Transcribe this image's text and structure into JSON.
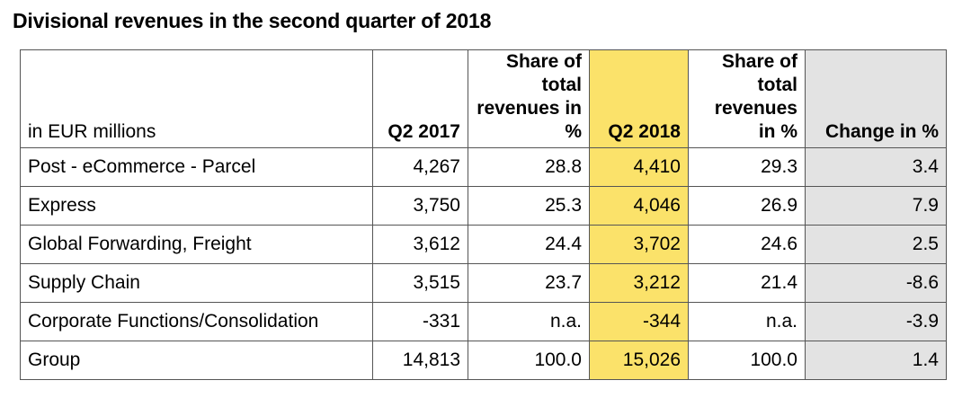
{
  "title": "Divisional revenues in the second quarter of 2018",
  "accent_color": "#fbe26a",
  "change_col_color": "#e3e3e3",
  "columns": {
    "label": "in EUR millions",
    "q2_2017": "Q2 2017",
    "share_2017": "Share of total revenues in %",
    "q2_2018": "Q2 2018",
    "share_2018": "Share of total revenues in %",
    "change": "Change in %"
  },
  "rows": [
    {
      "division": "Post - eCommerce - Parcel",
      "q2_2017": "4,267",
      "share_2017": "28.8",
      "q2_2018": "4,410",
      "share_2018": "29.3",
      "change": "3.4"
    },
    {
      "division": "Express",
      "q2_2017": "3,750",
      "share_2017": "25.3",
      "q2_2018": "4,046",
      "share_2018": "26.9",
      "change": "7.9"
    },
    {
      "division": "Global Forwarding, Freight",
      "q2_2017": "3,612",
      "share_2017": "24.4",
      "q2_2018": "3,702",
      "share_2018": "24.6",
      "change": "2.5"
    },
    {
      "division": "Supply Chain",
      "q2_2017": "3,515",
      "share_2017": "23.7",
      "q2_2018": "3,212",
      "share_2018": "21.4",
      "change": "-8.6"
    },
    {
      "division": "Corporate Functions/Consolidation",
      "q2_2017": "-331",
      "share_2017": "n.a.",
      "q2_2018": "-344",
      "share_2018": "n.a.",
      "change": "-3.9"
    },
    {
      "division": "Group",
      "q2_2017": "14,813",
      "share_2017": "100.0",
      "q2_2018": "15,026",
      "share_2018": "100.0",
      "change": "1.4"
    }
  ]
}
